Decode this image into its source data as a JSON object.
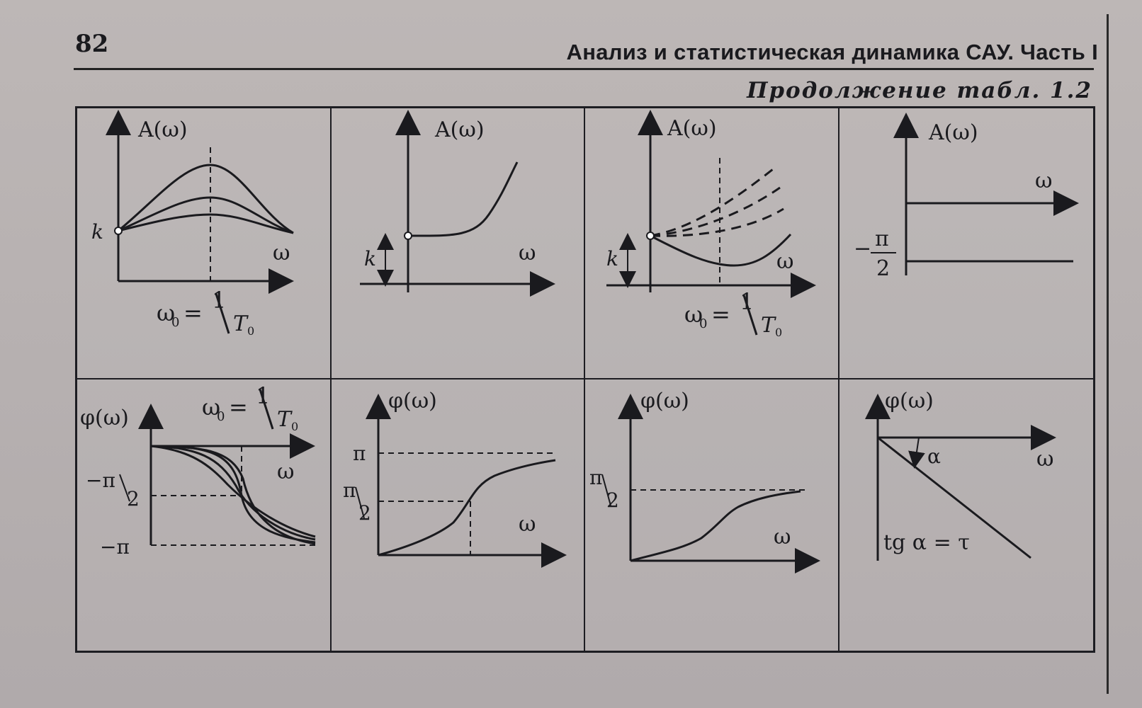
{
  "header": {
    "page_number": "82",
    "title": "Анализ и статистическая динамика САУ. Часть I",
    "caption": "Продолжение табл. 1.2"
  },
  "labels": {
    "amplitude": "A(ω)",
    "phase": "φ(ω)",
    "omega": "ω",
    "k": "k",
    "omega0_left": "ω",
    "omega0_sub": "0",
    "omega0_eq": "=",
    "one": "1",
    "T": "T",
    "T_sub": "0",
    "pi": "π",
    "neg_pi": "−π",
    "neg_pi_over": "−π",
    "half": "2",
    "minus": "−",
    "alpha": "α",
    "tg_alpha": "tg α = τ"
  },
  "colors": {
    "ink": "#1a1a1e",
    "paper": "#b9b4b3"
  }
}
